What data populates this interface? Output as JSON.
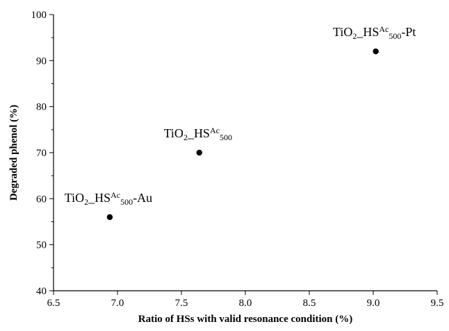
{
  "chart_data": {
    "type": "scatter",
    "xlabel": "Ratio of HSs with valid resonance condition (%)",
    "ylabel": "Degraded phenol (%)",
    "xlim": [
      6.5,
      9.5
    ],
    "ylim": [
      40,
      100
    ],
    "x_ticks": [
      "6.5",
      "7.0",
      "7.5",
      "8.0",
      "8.5",
      "9.0",
      "9.5"
    ],
    "y_ticks": [
      "40",
      "50",
      "60",
      "70",
      "80",
      "90",
      "100"
    ],
    "grid": false,
    "marker_color": "#000000",
    "points": [
      {
        "x": 6.94,
        "y": 56,
        "label": "TiO2_HSAc500-Au",
        "label_parts": [
          {
            "t": "TiO",
            "s": "normal"
          },
          {
            "t": "2",
            "s": "sub"
          },
          {
            "t": "_HS",
            "s": "normal"
          },
          {
            "t": "Ac",
            "s": "sup"
          },
          {
            "t": "500",
            "s": "sub"
          },
          {
            "t": "-Au",
            "s": "normal"
          }
        ]
      },
      {
        "x": 7.64,
        "y": 70,
        "label": "TiO2_HSAc500",
        "label_parts": [
          {
            "t": "TiO",
            "s": "normal"
          },
          {
            "t": "2",
            "s": "sub"
          },
          {
            "t": "_HS",
            "s": "normal"
          },
          {
            "t": "Ac",
            "s": "sup"
          },
          {
            "t": "500",
            "s": "sub"
          }
        ]
      },
      {
        "x": 9.02,
        "y": 92,
        "label": "TiO2_HSAc500-Pt",
        "label_parts": [
          {
            "t": "TiO",
            "s": "normal"
          },
          {
            "t": "2",
            "s": "sub"
          },
          {
            "t": "_HS",
            "s": "normal"
          },
          {
            "t": "Ac",
            "s": "sup"
          },
          {
            "t": "500",
            "s": "sub"
          },
          {
            "t": "-Pt",
            "s": "normal"
          }
        ]
      }
    ]
  }
}
